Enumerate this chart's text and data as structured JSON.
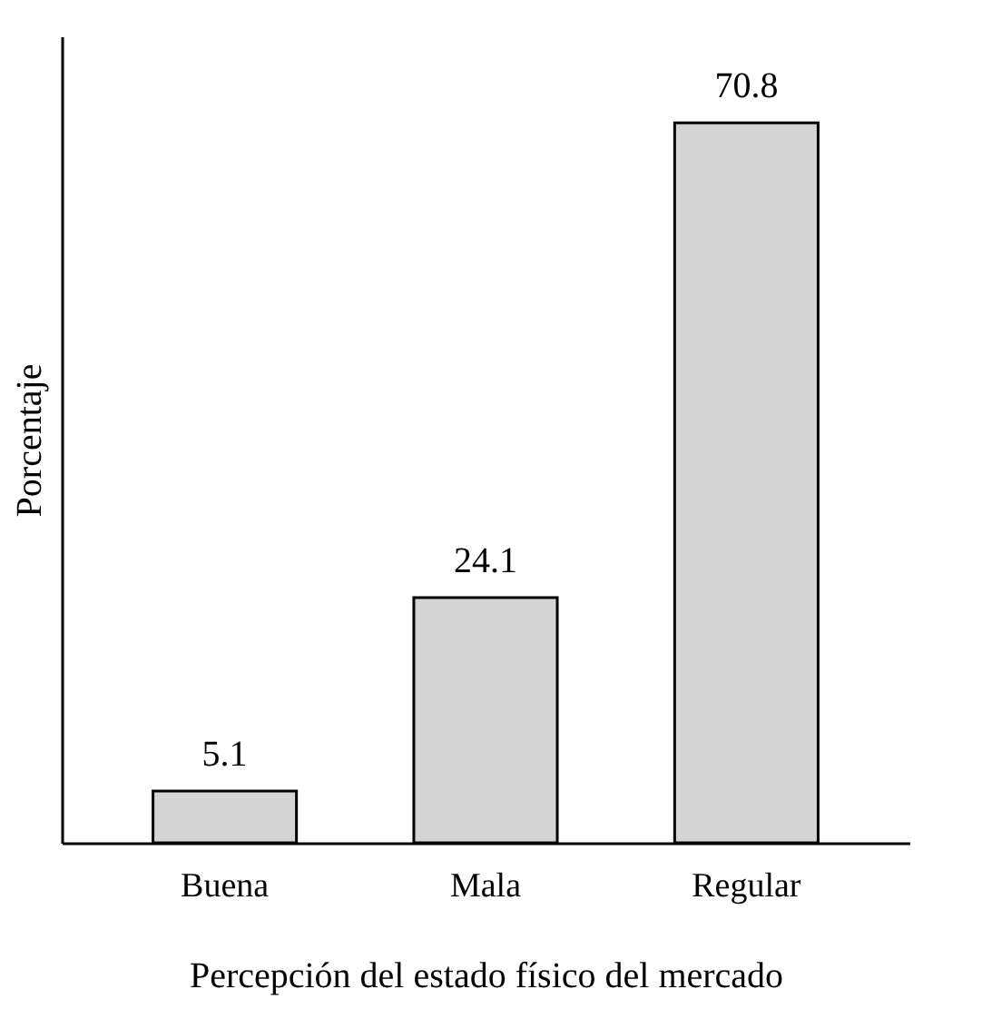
{
  "chart_data": {
    "type": "bar",
    "xlabel": "Percepción del estado físico del mercado",
    "ylabel": "Porcentaje",
    "categories": [
      "Buena",
      "Mala",
      "Regular"
    ],
    "values": [
      5.1,
      24.1,
      70.8
    ],
    "color": "#d4d4d4",
    "data_labels": true,
    "tick_labels": "x",
    "grid": false
  }
}
